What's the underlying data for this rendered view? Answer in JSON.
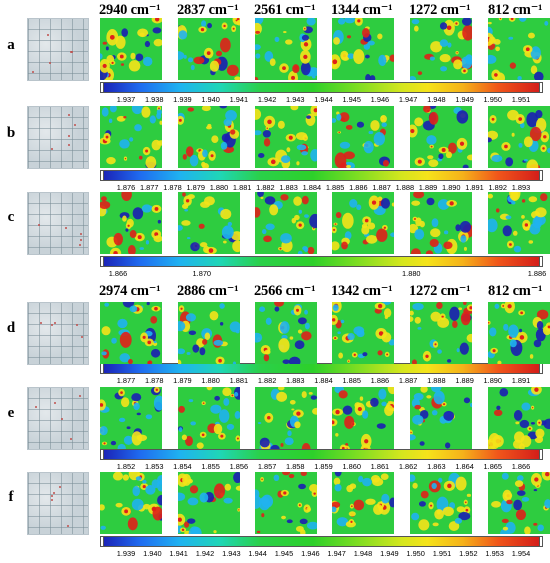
{
  "headers_top": [
    "2940 cm⁻¹",
    "2837 cm⁻¹",
    "2561 cm⁻¹",
    "1344 cm⁻¹",
    "1272 cm⁻¹",
    "812 cm⁻¹"
  ],
  "headers_bottom": [
    "2974 cm⁻¹",
    "2886 cm⁻¹",
    "2566 cm⁻¹",
    "1342 cm⁻¹",
    "1272 cm⁻¹",
    "812 cm⁻¹"
  ],
  "rows": [
    {
      "label": "a",
      "ticks": [
        "1.937",
        "1.938",
        "1.939",
        "1.940",
        "1.941",
        "1.942",
        "1.943",
        "1.944",
        "1.945",
        "1.946",
        "1.947",
        "1.948",
        "1.949",
        "1.950",
        "1.951"
      ]
    },
    {
      "label": "b",
      "ticks": [
        "1.876",
        "1.877",
        "1.878",
        "1.879",
        "1.880",
        "1.881",
        "1.882",
        "1.883",
        "1.884",
        "1.885",
        "1.886",
        "1.887",
        "1.888",
        "1.889",
        "1.890",
        "1.891",
        "1.892",
        "1.893"
      ]
    },
    {
      "label": "c",
      "ticks": [
        "1.866",
        "1.870",
        "1.880",
        "1.886"
      ]
    },
    {
      "label": "d",
      "ticks": [
        "1.877",
        "1.878",
        "1.879",
        "1.880",
        "1.881",
        "1.882",
        "1.883",
        "1.884",
        "1.885",
        "1.886",
        "1.887",
        "1.888",
        "1.889",
        "1.890",
        "1.891"
      ]
    },
    {
      "label": "e",
      "ticks": [
        "1.852",
        "1.853",
        "1.854",
        "1.855",
        "1.856",
        "1.857",
        "1.858",
        "1.859",
        "1.860",
        "1.861",
        "1.862",
        "1.863",
        "1.864",
        "1.865",
        "1.866"
      ]
    },
    {
      "label": "f",
      "ticks": [
        "1.939",
        "1.940",
        "1.941",
        "1.942",
        "1.943",
        "1.944",
        "1.945",
        "1.946",
        "1.947",
        "1.948",
        "1.949",
        "1.950",
        "1.951",
        "1.952",
        "1.953",
        "1.954"
      ]
    }
  ],
  "colors": {
    "map_base": "#2ecc40",
    "map_high": "#f5e31a",
    "map_peak": "#e0201a",
    "map_low": "#1fb3f0",
    "map_min": "#1b1eb3"
  }
}
